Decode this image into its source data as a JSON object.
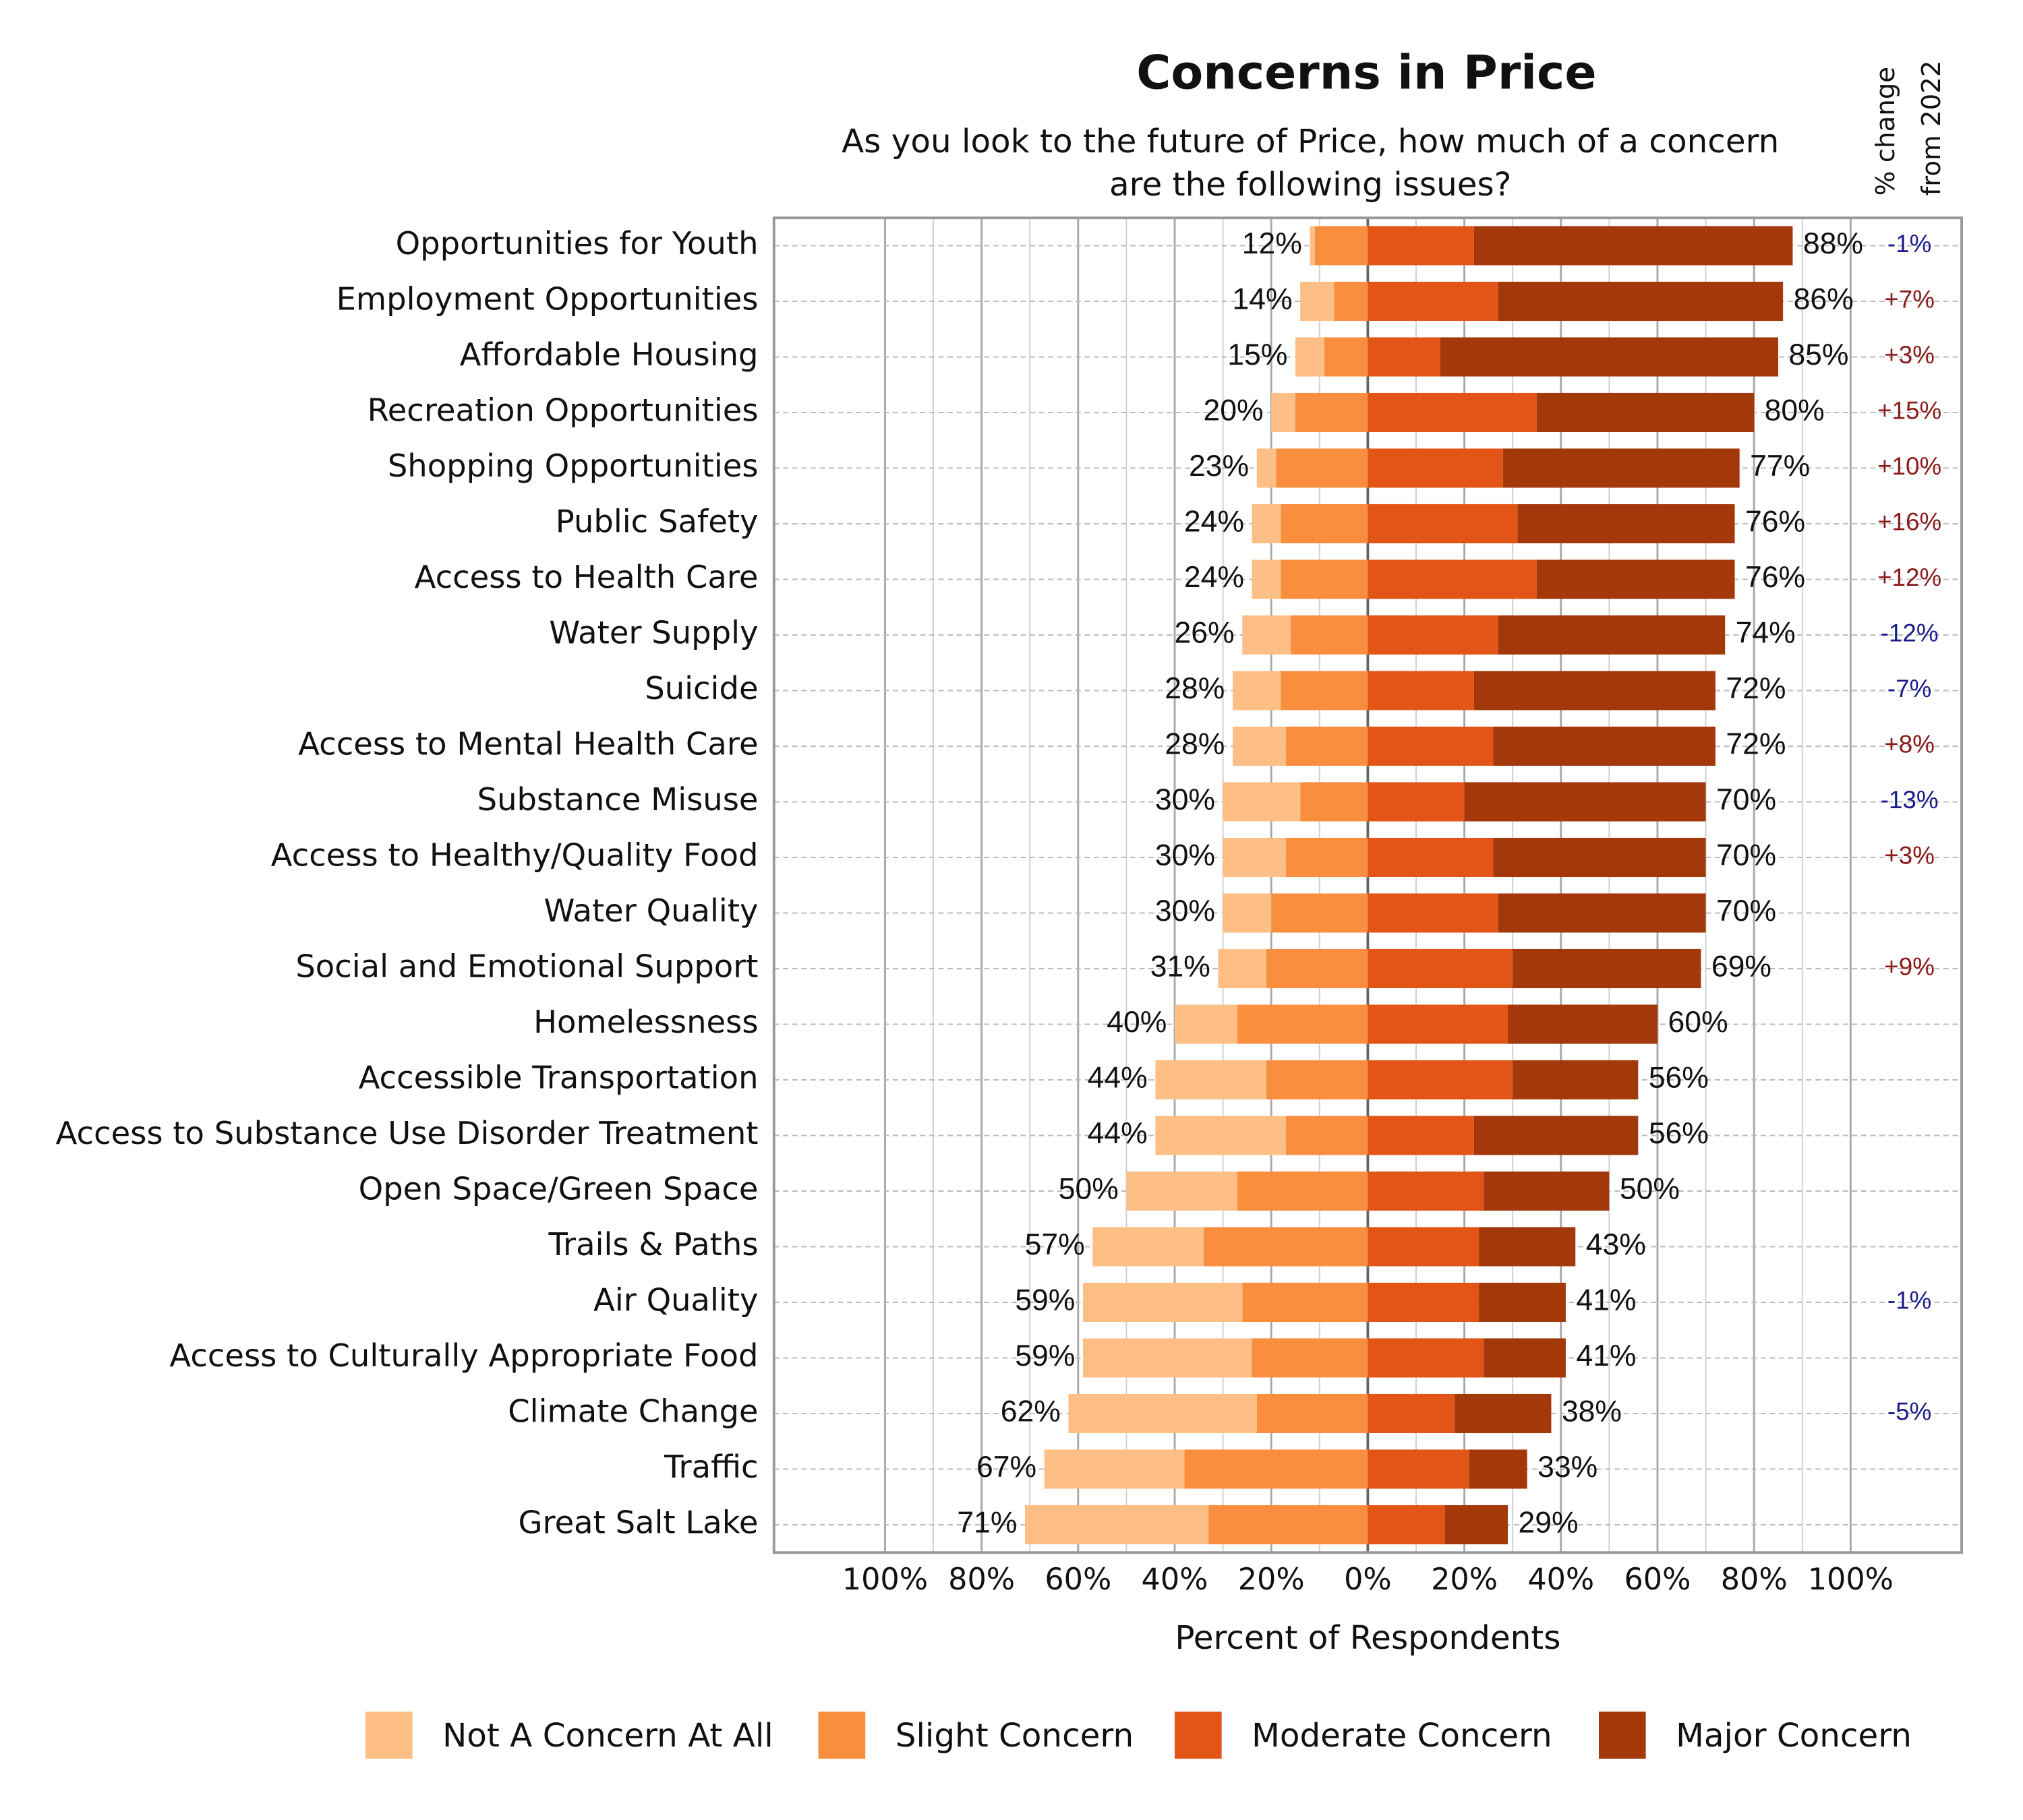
{
  "chart_data": {
    "type": "diverging_bar",
    "title": "Concerns in Price",
    "subtitle": [
      "As you look to the future of Price, how much of a concern",
      "are the following issues?"
    ],
    "x_label": "Percent of Respondents",
    "categories": [
      "Opportunities for Youth",
      "Employment Opportunities",
      "Affordable Housing",
      "Recreation Opportunities",
      "Shopping Opportunities",
      "Public Safety",
      "Access to Health Care",
      "Water Supply",
      "Suicide",
      "Access to Mental Health Care",
      "Substance Misuse",
      "Access to Healthy/Quality Food",
      "Water Quality",
      "Social and Emotional Support",
      "Homelessness",
      "Accessible Transportation",
      "Access to Substance Use Disorder Treatment",
      "Open Space/Green Space",
      "Trails & Paths",
      "Air Quality",
      "Access to Culturally Appropriate Food",
      "Climate Change",
      "Traffic",
      "Great Salt Lake"
    ],
    "series": [
      {
        "name": "Not A Concern At All",
        "color": "#fdbf86",
        "side": "left",
        "values": [
          1,
          7,
          6,
          5,
          4,
          6,
          6,
          10,
          10,
          11,
          16,
          13,
          10,
          10,
          13,
          23,
          27,
          23,
          23,
          33,
          35,
          39,
          29,
          38
        ]
      },
      {
        "name": "Slight Concern",
        "color": "#f98e3f",
        "side": "left",
        "values": [
          11,
          7,
          9,
          15,
          19,
          18,
          18,
          16,
          18,
          17,
          14,
          17,
          20,
          21,
          27,
          21,
          17,
          27,
          34,
          26,
          24,
          23,
          38,
          33
        ]
      },
      {
        "name": "Moderate Concern",
        "color": "#e25516",
        "side": "right",
        "values": [
          22,
          27,
          15,
          35,
          28,
          31,
          35,
          27,
          22,
          26,
          20,
          26,
          27,
          30,
          29,
          30,
          22,
          24,
          23,
          23,
          24,
          18,
          21,
          16
        ]
      },
      {
        "name": "Major Concern",
        "color": "#a3380b",
        "side": "right",
        "values": [
          66,
          59,
          70,
          45,
          49,
          45,
          41,
          47,
          50,
          46,
          50,
          44,
          43,
          39,
          31,
          26,
          34,
          26,
          20,
          18,
          17,
          20,
          12,
          13
        ]
      }
    ],
    "left_labels": [
      "12%",
      "14%",
      "15%",
      "20%",
      "23%",
      "24%",
      "24%",
      "26%",
      "28%",
      "28%",
      "30%",
      "30%",
      "30%",
      "31%",
      "40%",
      "44%",
      "44%",
      "50%",
      "57%",
      "59%",
      "59%",
      "62%",
      "67%",
      "71%"
    ],
    "right_labels": [
      "88%",
      "86%",
      "85%",
      "80%",
      "77%",
      "76%",
      "76%",
      "74%",
      "72%",
      "72%",
      "70%",
      "70%",
      "70%",
      "69%",
      "60%",
      "56%",
      "56%",
      "50%",
      "43%",
      "41%",
      "41%",
      "38%",
      "33%",
      "29%"
    ],
    "change_title": [
      "% change",
      "from 2022"
    ],
    "change": [
      -1,
      7,
      3,
      15,
      10,
      16,
      12,
      -12,
      -7,
      8,
      -13,
      3,
      null,
      9,
      null,
      null,
      null,
      null,
      null,
      -1,
      null,
      -5,
      null,
      null
    ],
    "change_labels": [
      "-1%",
      "+7%",
      "+3%",
      "+15%",
      "+10%",
      "+16%",
      "+12%",
      "-12%",
      "-7%",
      "+8%",
      "-13%",
      "+3%",
      null,
      "+9%",
      null,
      null,
      null,
      null,
      null,
      "-1%",
      null,
      "-5%",
      null,
      null
    ],
    "change_colors": {
      "up": "#8b1a1a",
      "down": "#1a1a8c"
    },
    "xlim": [
      -123,
      123
    ],
    "xticks": [
      {
        "value": -100,
        "label": "100%"
      },
      {
        "value": -80,
        "label": "80%"
      },
      {
        "value": -60,
        "label": "60%"
      },
      {
        "value": -40,
        "label": "40%"
      },
      {
        "value": -20,
        "label": "20%"
      },
      {
        "value": 0,
        "label": "0%"
      },
      {
        "value": 20,
        "label": "20%"
      },
      {
        "value": 40,
        "label": "40%"
      },
      {
        "value": 60,
        "label": "60%"
      },
      {
        "value": 80,
        "label": "80%"
      },
      {
        "value": 100,
        "label": "100%"
      }
    ],
    "grid": true
  }
}
